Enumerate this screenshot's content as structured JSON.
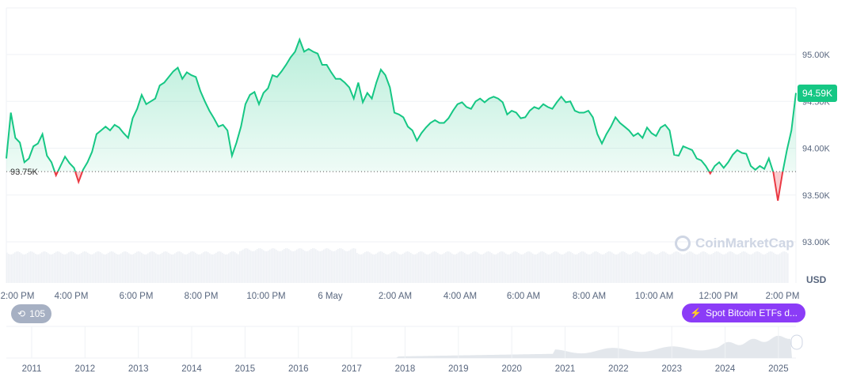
{
  "chart_data": {
    "type": "area",
    "currency": "USD",
    "y_ticks": [
      "95.00K",
      "94.50K",
      "94.00K",
      "93.50K",
      "93.00K"
    ],
    "y_tick_values": [
      95.0,
      94.5,
      94.0,
      93.5,
      93.0
    ],
    "ylim": [
      92.93,
      95.5
    ],
    "y_unit": "K USD",
    "baseline": {
      "value": 93.75,
      "label": "93.75K"
    },
    "current": {
      "value": 94.59,
      "label": "94.59K"
    },
    "x_ticks": [
      "2:00 PM",
      "4:00 PM",
      "6:00 PM",
      "8:00 PM",
      "10:00 PM",
      "6 May",
      "2:00 AM",
      "4:00 AM",
      "6:00 AM",
      "8:00 AM",
      "10:00 AM",
      "12:00 PM",
      "2:00 PM"
    ],
    "prices": [
      93.89,
      94.38,
      94.11,
      94.06,
      93.85,
      93.89,
      94.02,
      94.05,
      94.15,
      93.92,
      93.85,
      93.71,
      93.81,
      93.91,
      93.84,
      93.79,
      93.64,
      93.77,
      93.85,
      93.96,
      94.15,
      94.19,
      94.23,
      94.19,
      94.25,
      94.22,
      94.16,
      94.11,
      94.32,
      94.42,
      94.57,
      94.47,
      94.5,
      94.53,
      94.67,
      94.7,
      94.76,
      94.82,
      94.86,
      94.74,
      94.81,
      94.78,
      94.76,
      94.61,
      94.5,
      94.4,
      94.32,
      94.23,
      94.25,
      94.19,
      93.92,
      94.06,
      94.23,
      94.47,
      94.57,
      94.6,
      94.47,
      94.59,
      94.64,
      94.78,
      94.76,
      94.82,
      94.89,
      94.97,
      95.03,
      95.16,
      95.03,
      95.06,
      95.03,
      95.01,
      94.89,
      94.89,
      94.81,
      94.74,
      94.74,
      94.7,
      94.65,
      94.53,
      94.7,
      94.49,
      94.59,
      94.53,
      94.7,
      94.84,
      94.78,
      94.65,
      94.38,
      94.36,
      94.33,
      94.23,
      94.19,
      94.08,
      94.16,
      94.22,
      94.27,
      94.3,
      94.27,
      94.27,
      94.32,
      94.4,
      94.47,
      94.49,
      94.44,
      94.42,
      94.5,
      94.53,
      94.49,
      94.53,
      94.55,
      94.53,
      94.49,
      94.36,
      94.4,
      94.38,
      94.32,
      94.33,
      94.4,
      94.44,
      94.42,
      94.47,
      94.44,
      94.42,
      94.49,
      94.55,
      94.49,
      94.5,
      94.4,
      94.38,
      94.38,
      94.4,
      94.33,
      94.15,
      94.05,
      94.15,
      94.23,
      94.33,
      94.27,
      94.23,
      94.19,
      94.13,
      94.16,
      94.11,
      94.22,
      94.16,
      94.13,
      94.22,
      94.25,
      94.19,
      93.93,
      93.92,
      94.02,
      94.0,
      93.98,
      93.89,
      93.87,
      93.81,
      93.73,
      93.81,
      93.85,
      93.79,
      93.85,
      93.93,
      93.98,
      93.95,
      93.94,
      93.81,
      93.77,
      93.81,
      93.78,
      93.89,
      93.74,
      93.44,
      93.73,
      93.98,
      94.19,
      94.59
    ],
    "navigator_years": [
      "2011",
      "2012",
      "2013",
      "2014",
      "2015",
      "2016",
      "2017",
      "2018",
      "2019",
      "2020",
      "2021",
      "2022",
      "2023",
      "2024",
      "2025"
    ],
    "grid": true
  },
  "watermark": "CoinMarketCap",
  "colors": {
    "up": "#16c784",
    "down": "#ea3943",
    "grid": "#eff2f5",
    "label": "#58667e",
    "event": "#8b3cf7",
    "history": "#a6b0c3"
  },
  "history_badge": {
    "icon": "history-icon",
    "count": "105"
  },
  "event_badge": {
    "icon": "lightning-icon",
    "label": "Spot Bitcoin ETFs d..."
  }
}
